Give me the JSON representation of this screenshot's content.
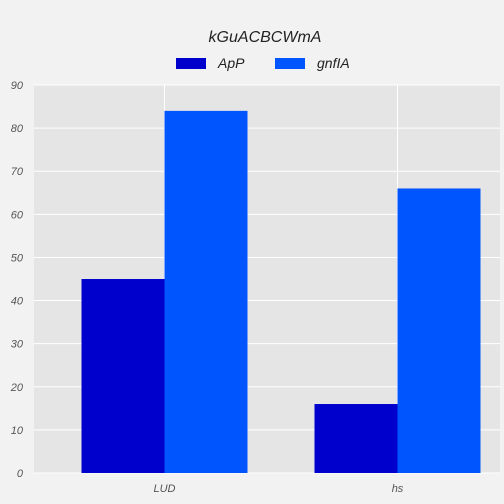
{
  "chart_data": {
    "type": "bar",
    "title": "kGuACBCWmA",
    "xlabel": "",
    "ylabel": "",
    "categories": [
      "LUD",
      "hs"
    ],
    "series": [
      {
        "name": "ApP",
        "values": [
          45,
          16
        ],
        "color": "#0000cc"
      },
      {
        "name": "gnfIA",
        "values": [
          84,
          66
        ],
        "color": "#0055ff"
      }
    ],
    "ylim": [
      0,
      90
    ],
    "yticks": [
      "0",
      "10",
      "20",
      "30",
      "40",
      "50",
      "60",
      "70",
      "80",
      "90"
    ],
    "grid": true,
    "legend_position": "top-center",
    "colors": {
      "background": "#f2f2f2",
      "plot_area": "#e5e5e5",
      "grid": "#ffffff"
    }
  }
}
